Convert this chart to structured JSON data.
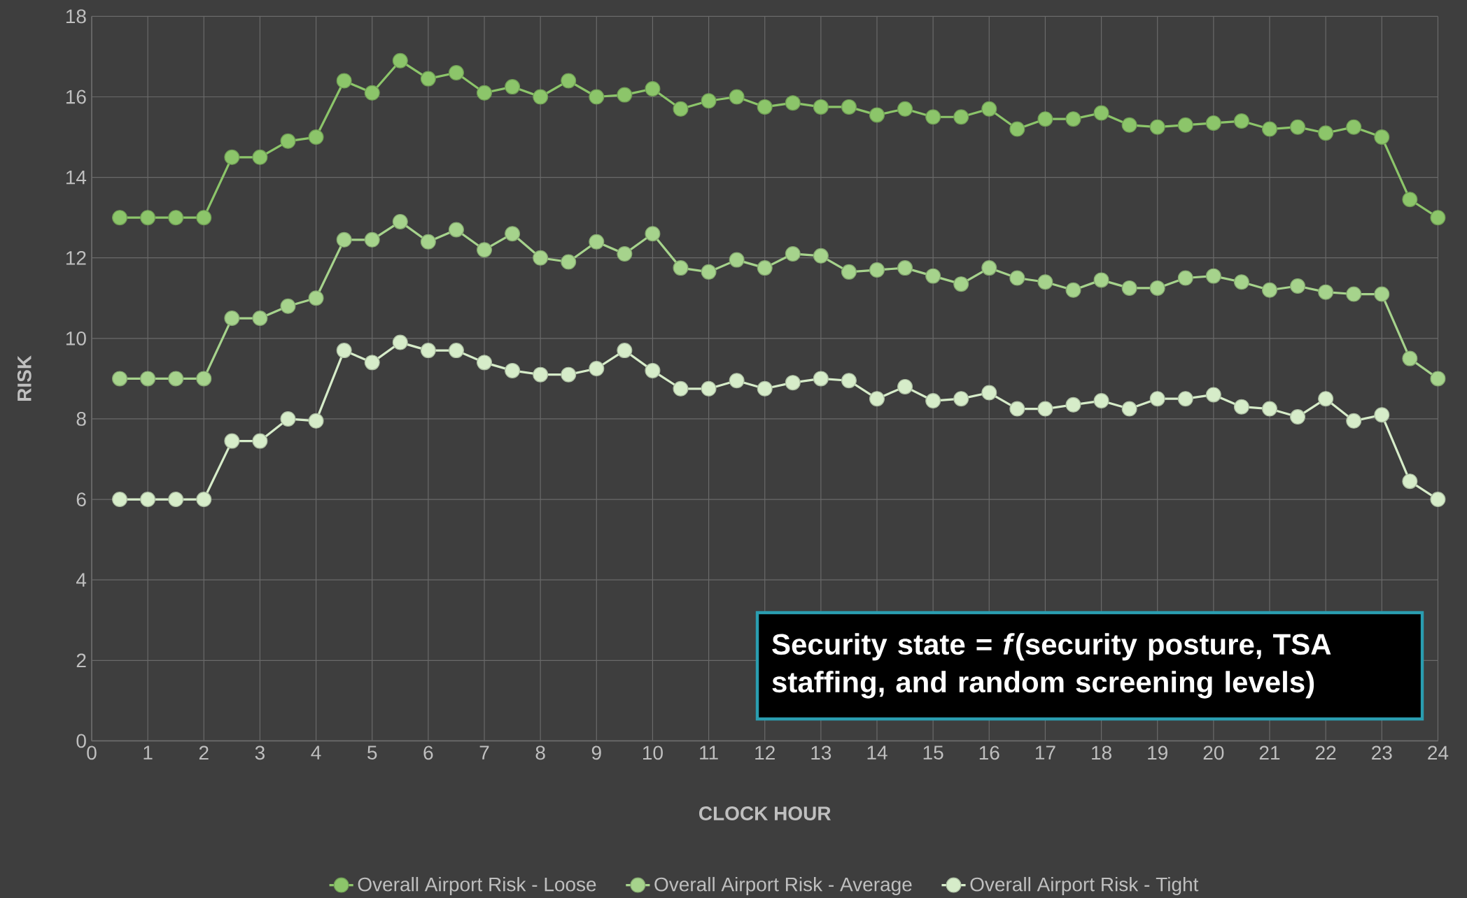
{
  "chart_data": {
    "type": "line",
    "xlabel": "CLOCK HOUR",
    "ylabel": "RISK",
    "x": [
      0.5,
      1,
      1.5,
      2,
      2.5,
      3,
      3.5,
      4,
      4.5,
      5,
      5.5,
      6,
      6.5,
      7,
      7.5,
      8,
      8.5,
      9,
      9.5,
      10,
      10.5,
      11,
      11.5,
      12,
      12.5,
      13,
      13.5,
      14,
      14.5,
      15,
      15.5,
      16,
      16.5,
      17,
      17.5,
      18,
      18.5,
      19,
      19.5,
      20,
      20.5,
      21,
      21.5,
      22,
      22.5,
      23,
      23.5,
      24
    ],
    "series": [
      {
        "name": "Overall Airport Risk - Loose",
        "color": "#8cc56a",
        "values": [
          13,
          13,
          13,
          13,
          14.5,
          14.5,
          14.9,
          15.0,
          16.4,
          16.1,
          16.9,
          16.45,
          16.6,
          16.1,
          16.25,
          16.0,
          16.4,
          16.0,
          16.05,
          16.2,
          15.7,
          15.9,
          16.0,
          15.75,
          15.85,
          15.75,
          15.75,
          15.55,
          15.7,
          15.5,
          15.5,
          15.7,
          15.2,
          15.45,
          15.45,
          15.6,
          15.3,
          15.25,
          15.3,
          15.35,
          15.4,
          15.2,
          15.25,
          15.1,
          15.25,
          15.0,
          13.45,
          13.0
        ]
      },
      {
        "name": "Overall Airport Risk - Average",
        "color": "#a6d38c",
        "values": [
          9,
          9,
          9,
          9,
          10.5,
          10.5,
          10.8,
          11.0,
          12.45,
          12.45,
          12.9,
          12.4,
          12.7,
          12.2,
          12.6,
          12.0,
          11.9,
          12.4,
          12.1,
          12.6,
          11.75,
          11.65,
          11.95,
          11.75,
          12.1,
          12.05,
          11.65,
          11.7,
          11.75,
          11.55,
          11.35,
          11.75,
          11.5,
          11.4,
          11.2,
          11.45,
          11.25,
          11.25,
          11.5,
          11.55,
          11.4,
          11.2,
          11.3,
          11.15,
          11.1,
          11.1,
          9.5,
          9.0
        ]
      },
      {
        "name": "Overall Airport Risk - Tight",
        "color": "#d6ecc9",
        "values": [
          6,
          6,
          6,
          6,
          7.45,
          7.45,
          8.0,
          7.95,
          9.7,
          9.4,
          9.9,
          9.7,
          9.7,
          9.4,
          9.2,
          9.1,
          9.1,
          9.25,
          9.7,
          9.2,
          8.75,
          8.75,
          8.95,
          8.75,
          8.9,
          9.0,
          8.95,
          8.5,
          8.8,
          8.45,
          8.5,
          8.65,
          8.25,
          8.25,
          8.35,
          8.45,
          8.25,
          8.5,
          8.5,
          8.6,
          8.3,
          8.25,
          8.05,
          8.5,
          7.95,
          8.1,
          6.45,
          6.0
        ]
      }
    ],
    "xlim": [
      0,
      24
    ],
    "ylim": [
      0,
      18
    ],
    "xticks": [
      0,
      1,
      2,
      3,
      4,
      5,
      6,
      7,
      8,
      9,
      10,
      11,
      12,
      13,
      14,
      15,
      16,
      17,
      18,
      19,
      20,
      21,
      22,
      23,
      24
    ],
    "yticks": [
      0,
      2,
      4,
      6,
      8,
      10,
      12,
      14,
      16,
      18
    ],
    "grid": true,
    "legend": "bottom",
    "marker": "circle",
    "annotations": [
      "Security state = *f*(security posture, TSA staffing, and random screening levels)"
    ]
  }
}
